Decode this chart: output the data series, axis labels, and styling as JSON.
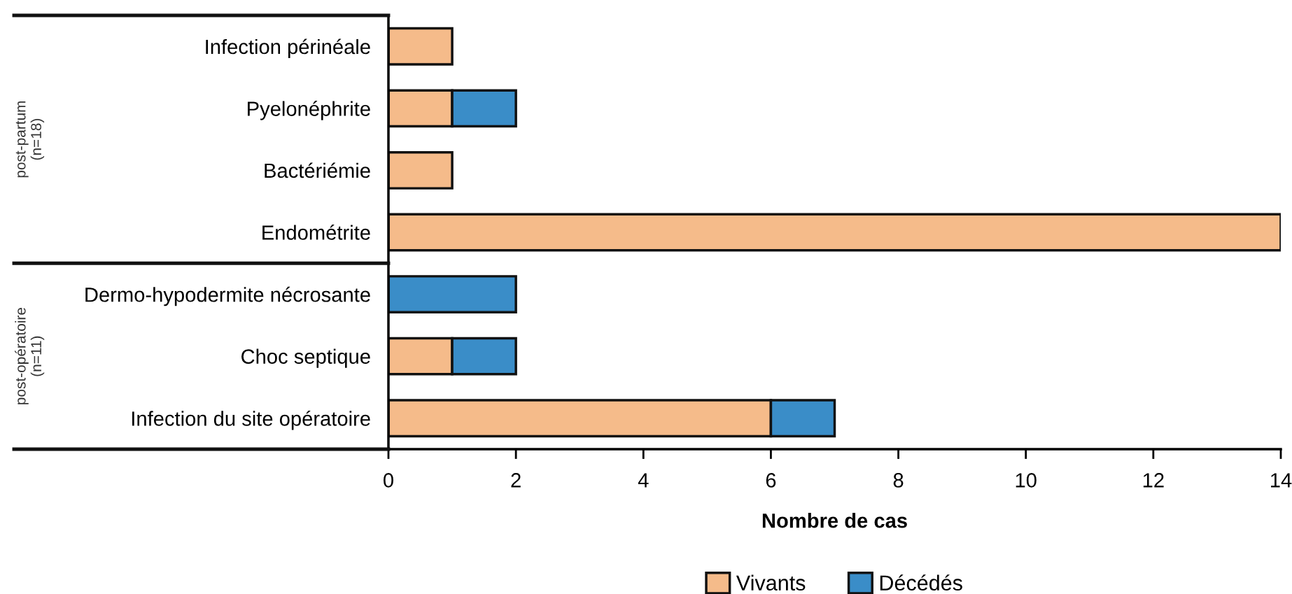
{
  "chart_data": {
    "type": "bar",
    "orientation": "horizontal",
    "stacked": true,
    "categories": [
      "Infection périnéale",
      "Pyelonéphrite",
      "Bactériémie",
      "Endométrite",
      "Dermo-hypodermite nécrosante",
      "Choc septique",
      "Infection du site opératoire"
    ],
    "series": [
      {
        "name": "Vivants",
        "color": "#f5bb8a",
        "values": [
          1,
          1,
          1,
          14,
          0,
          1,
          6
        ]
      },
      {
        "name": "Décédés",
        "color": "#3a8dc8",
        "values": [
          0,
          1,
          0,
          0,
          2,
          1,
          1
        ]
      }
    ],
    "xlabel": "Nombre de cas",
    "xlim": [
      0,
      14
    ],
    "xticks": [
      0,
      2,
      4,
      6,
      8,
      10,
      12,
      14
    ],
    "annotations": [
      "post-partum\n(n=18)",
      "post-opératoire\n(n=11)"
    ],
    "legend": "bottom",
    "grid": false
  }
}
